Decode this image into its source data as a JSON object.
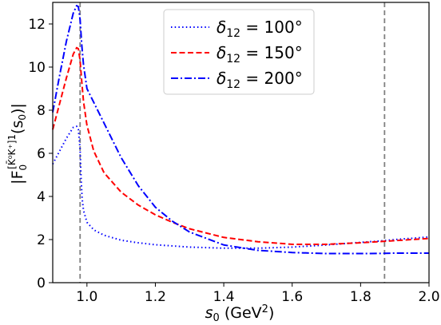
{
  "chart_data": {
    "type": "line",
    "xlabel": {
      "main": "s",
      "sub": "0",
      "unit_open": " (GeV",
      "sup": "2",
      "unit_close": ")"
    },
    "ylabel": {
      "prefix": "|F",
      "sub": "0",
      "sup": "[K̄⁰K⁺]1",
      "suffix": "(s",
      "suffix_sub": "0",
      "suffix_close": ")|"
    },
    "xlim": [
      0.9,
      2.0
    ],
    "ylim": [
      0,
      13
    ],
    "x_ticks": [
      1.0,
      1.2,
      1.4,
      1.6,
      1.8,
      2.0
    ],
    "x_tick_labels": [
      "1.0",
      "1.2",
      "1.4",
      "1.6",
      "1.8",
      "2.0"
    ],
    "y_ticks": [
      0,
      2,
      4,
      6,
      8,
      10,
      12
    ],
    "y_tick_labels": [
      "0",
      "2",
      "4",
      "6",
      "8",
      "10",
      "12"
    ],
    "grid": false,
    "legend_position": "top-right",
    "vlines": [
      0.98,
      1.87
    ],
    "series": [
      {
        "name": "δ12 = 100°",
        "name_parts": {
          "symbol": "δ",
          "sub": "12",
          "rest": " = 100°"
        },
        "color": "#0000ff",
        "dash": "dotted",
        "x": [
          0.9,
          0.92,
          0.94,
          0.96,
          0.97,
          0.975,
          0.98,
          0.983,
          0.986,
          0.99,
          1.0,
          1.02,
          1.05,
          1.1,
          1.15,
          1.2,
          1.3,
          1.4,
          1.5,
          1.6,
          1.7,
          1.8,
          1.87,
          1.9,
          2.0
        ],
        "y": [
          5.5,
          6.1,
          6.7,
          7.2,
          7.25,
          7.1,
          6.2,
          4.8,
          3.9,
          3.35,
          2.8,
          2.45,
          2.2,
          1.97,
          1.85,
          1.76,
          1.65,
          1.6,
          1.6,
          1.65,
          1.75,
          1.87,
          1.95,
          2.0,
          2.12
        ]
      },
      {
        "name": "δ12 = 150°",
        "name_parts": {
          "symbol": "δ",
          "sub": "12",
          "rest": " = 150°"
        },
        "color": "#ff0000",
        "dash": "dashed",
        "x": [
          0.9,
          0.92,
          0.94,
          0.96,
          0.97,
          0.975,
          0.98,
          0.985,
          0.99,
          1.0,
          1.02,
          1.05,
          1.1,
          1.15,
          1.2,
          1.25,
          1.3,
          1.4,
          1.5,
          1.6,
          1.7,
          1.8,
          1.9,
          2.0
        ],
        "y": [
          7.1,
          8.3,
          9.5,
          10.6,
          10.9,
          10.85,
          10.3,
          9.3,
          8.4,
          7.3,
          6.1,
          5.1,
          4.2,
          3.6,
          3.15,
          2.8,
          2.5,
          2.1,
          1.9,
          1.78,
          1.78,
          1.85,
          1.95,
          2.05
        ]
      },
      {
        "name": "δ12 = 200°",
        "name_parts": {
          "symbol": "δ",
          "sub": "12",
          "rest": " = 200°"
        },
        "color": "#0000ff",
        "dash": "dashdot",
        "x": [
          0.9,
          0.92,
          0.94,
          0.96,
          0.97,
          0.975,
          0.98,
          0.985,
          0.99,
          1.0,
          1.05,
          1.1,
          1.15,
          1.2,
          1.25,
          1.3,
          1.4,
          1.5,
          1.6,
          1.7,
          1.8,
          1.87,
          1.9,
          2.0
        ],
        "y": [
          7.9,
          9.6,
          11.2,
          12.5,
          12.85,
          12.8,
          12.2,
          11.0,
          10.1,
          9.0,
          7.4,
          5.8,
          4.5,
          3.5,
          2.85,
          2.35,
          1.75,
          1.5,
          1.4,
          1.35,
          1.35,
          1.36,
          1.37,
          1.37
        ]
      }
    ]
  }
}
